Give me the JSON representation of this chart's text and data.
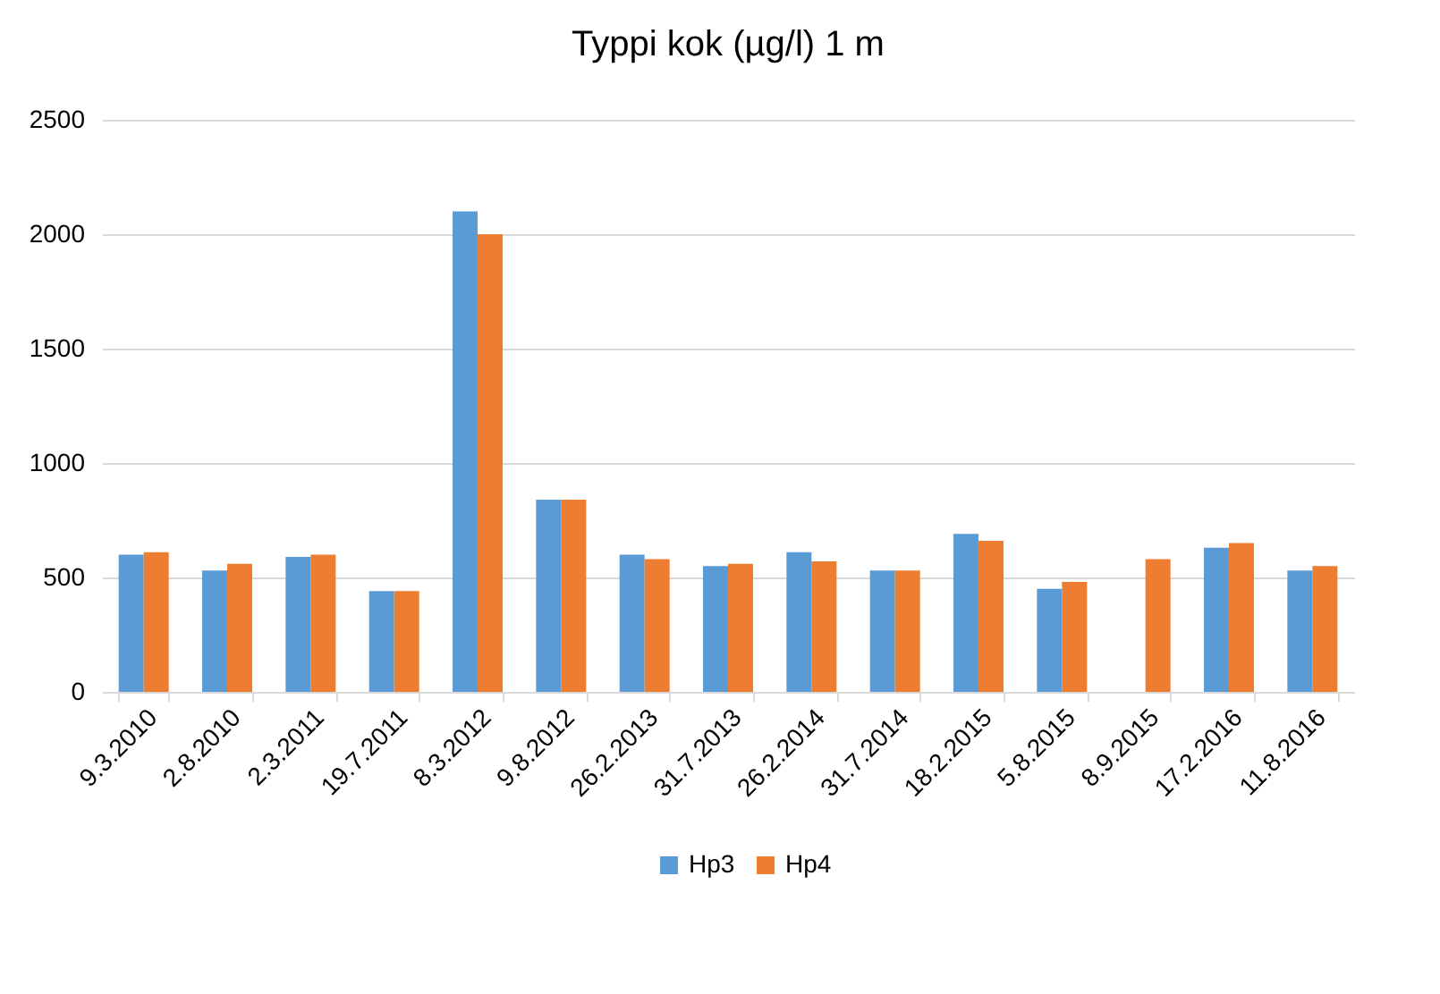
{
  "chart_data": {
    "type": "bar",
    "title": "Typpi kok (µg/l) 1 m",
    "categories": [
      "9.3.2010",
      "2.8.2010",
      "2.3.2011",
      "19.7.2011",
      "8.3.2012",
      "9.8.2012",
      "26.2.2013",
      "31.7.2013",
      "26.2.2014",
      "31.7.2014",
      "18.2.2015",
      "5.8.2015",
      "8.9.2015",
      "17.2.2016",
      "11.8.2016"
    ],
    "series": [
      {
        "name": "Hp3",
        "color": "#5b9bd5",
        "values": [
          600,
          530,
          590,
          440,
          2100,
          840,
          600,
          550,
          610,
          530,
          690,
          450,
          null,
          630,
          530
        ]
      },
      {
        "name": "Hp4",
        "color": "#ed7d31",
        "values": [
          610,
          560,
          600,
          440,
          2000,
          840,
          580,
          560,
          570,
          530,
          660,
          480,
          580,
          650,
          550
        ]
      }
    ],
    "ylim": [
      0,
      2500
    ],
    "yticks": [
      0,
      500,
      1000,
      1500,
      2000,
      2500
    ],
    "grid": "y",
    "legend": "bottom"
  }
}
